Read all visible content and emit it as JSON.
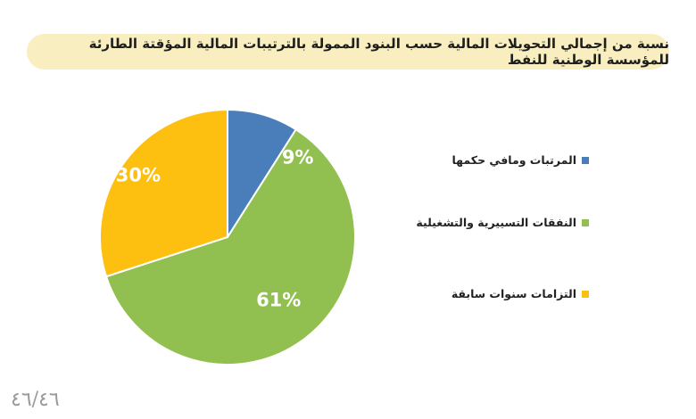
{
  "title": "نسبة من إجمالي التحويلات المالية حسب البنود الممولة بالترتيبات المالية المؤقتة الطارئة للمؤسسة الوطنية للنفط",
  "page_number": "٤٦/٤٦",
  "colors": {
    "blue": "#4a7ebb",
    "green": "#92c050",
    "yellow": "#fdbf10",
    "banner": "#f8eebf"
  },
  "chart_data": {
    "type": "pie",
    "title": "نسبة من إجمالي التحويلات المالية حسب البنود الممولة بالترتيبات المالية المؤقتة الطارئة للمؤسسة الوطنية للنفط",
    "slices": [
      {
        "label": "المرتبات ومافي حكمها",
        "value": 9,
        "display": "9%",
        "color": "#4a7ebb"
      },
      {
        "label": "النفقات التسييرية والتشغيلية",
        "value": 61,
        "display": "61%",
        "color": "#92c050"
      },
      {
        "label": "التزامات سنوات سابقة",
        "value": 30,
        "display": "30%",
        "color": "#fdbf10"
      }
    ],
    "legend_position": "right"
  }
}
